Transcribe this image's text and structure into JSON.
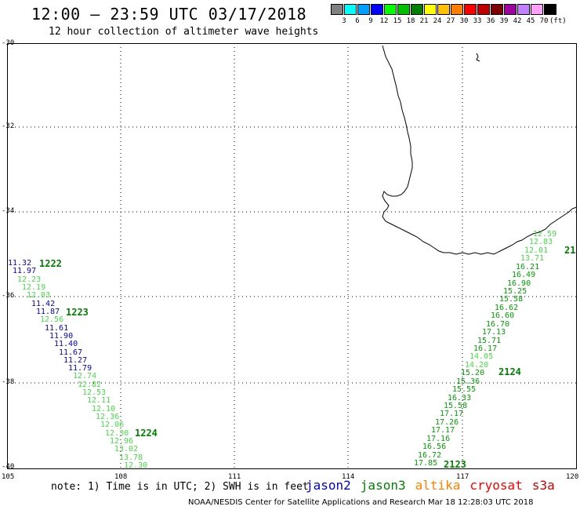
{
  "header": {
    "title": "12:00 – 23:59 UTC 03/17/2018",
    "subtitle": "12 hour collection of altimeter wave heights"
  },
  "scale": {
    "unit": "(ft)",
    "bins": [
      {
        "label": "3",
        "color": "#808080"
      },
      {
        "label": "6",
        "color": "#00ffff"
      },
      {
        "label": "9",
        "color": "#00a0ff"
      },
      {
        "label": "12",
        "color": "#0000ff"
      },
      {
        "label": "15",
        "color": "#00ff00"
      },
      {
        "label": "18",
        "color": "#00c000"
      },
      {
        "label": "21",
        "color": "#008000"
      },
      {
        "label": "24",
        "color": "#ffff00"
      },
      {
        "label": "27",
        "color": "#ffc000"
      },
      {
        "label": "30",
        "color": "#ff8000"
      },
      {
        "label": "33",
        "color": "#ff0000"
      },
      {
        "label": "36",
        "color": "#c00000"
      },
      {
        "label": "39",
        "color": "#800000"
      },
      {
        "label": "42",
        "color": "#a000a0"
      },
      {
        "label": "45",
        "color": "#c080ff"
      },
      {
        "label": "70",
        "color": "#ffa0ff"
      },
      {
        "label": "",
        "color": "#000000"
      }
    ]
  },
  "axes": {
    "lon_labels": [
      "105",
      "108",
      "111",
      "114",
      "117",
      "120"
    ],
    "lat_labels": [
      "-30",
      "-32",
      "-34",
      "-36",
      "-38",
      "-40"
    ]
  },
  "tracks": {
    "west": {
      "values": [
        "11.32",
        "11.97",
        "12.23",
        "12.19",
        "12.03",
        "11.42",
        "11.87",
        "12.56",
        "11.61",
        "11.90",
        "11.40",
        "11.67",
        "11.27",
        "11.79",
        "12.74",
        "12.82",
        "12.53",
        "12.11",
        "12.10",
        "12.36",
        "12.06",
        "12.30",
        "12.96",
        "13.02",
        "13.78",
        "12.30"
      ],
      "colors": [
        "b",
        "b",
        "g",
        "g",
        "g",
        "b",
        "b",
        "g",
        "b",
        "b",
        "b",
        "b",
        "b",
        "b",
        "g",
        "g",
        "g",
        "g",
        "g",
        "g",
        "g",
        "g",
        "g",
        "g",
        "g",
        "g"
      ],
      "times": [
        "1222",
        "1223",
        "1224"
      ]
    },
    "east": {
      "values": [
        "12.59",
        "12.83",
        "12.01",
        "13.71",
        "16.21",
        "16.49",
        "16.90",
        "15.25",
        "15.58",
        "16.62",
        "16.60",
        "16.70",
        "17.13",
        "15.71",
        "16.17",
        "14.05",
        "14.20",
        "15.20",
        "15.36",
        "15.55",
        "16.33",
        "15.58",
        "17.17",
        "17.26",
        "17.17",
        "17.16",
        "16.56",
        "16.72",
        "17.85"
      ],
      "colors": [
        "g",
        "g",
        "g",
        "g",
        "d",
        "d",
        "d",
        "d",
        "d",
        "d",
        "d",
        "d",
        "d",
        "d",
        "d",
        "g",
        "g",
        "d",
        "d",
        "d",
        "d",
        "d",
        "d",
        "d",
        "d",
        "d",
        "d",
        "d",
        "d"
      ],
      "times": [
        "21",
        "2124",
        "2123"
      ]
    }
  },
  "note": "note: 1) Time is in UTC; 2) SWH is in feet",
  "satellites": [
    {
      "name": "jason2",
      "color": "#0000cc"
    },
    {
      "name": "jason3",
      "color": "#008000"
    },
    {
      "name": "altika",
      "color": "#ff8000"
    },
    {
      "name": "cryosat",
      "color": "#ff0000"
    },
    {
      "name": "s3a",
      "color": "#cc0000"
    }
  ],
  "footer": "NOAA/NESDIS Center for Satellite Applications and Research    Mar 18 12:28:03 UTC 2018"
}
